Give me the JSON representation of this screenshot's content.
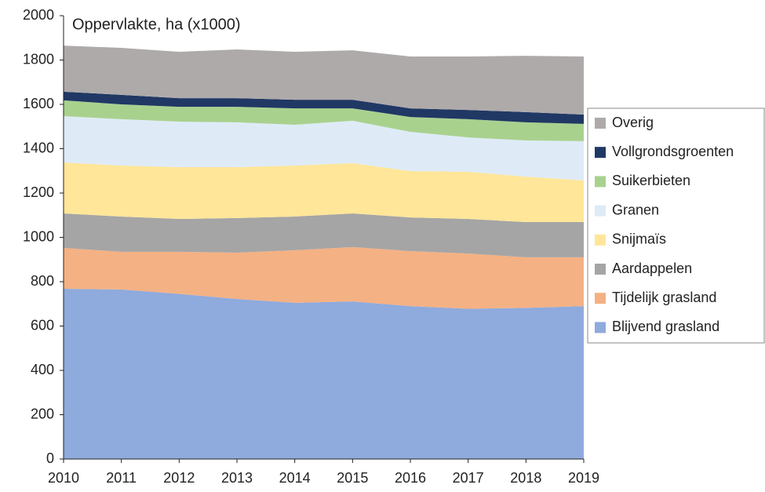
{
  "chart_data": {
    "type": "stacked_area",
    "title": "Oppervlakte, ha (x1000)",
    "categories": [
      "2010",
      "2011",
      "2012",
      "2013",
      "2014",
      "2015",
      "2016",
      "2017",
      "2018",
      "2019"
    ],
    "ylim": [
      0,
      2000
    ],
    "yticks": [
      0,
      200,
      400,
      600,
      800,
      1000,
      1200,
      1400,
      1600,
      1800,
      2000
    ],
    "series": [
      {
        "name": "Blijvend grasland",
        "color": "#8faadc",
        "values": [
          768,
          765,
          745,
          722,
          705,
          711,
          690,
          678,
          682,
          690
        ]
      },
      {
        "name": "Tijdelijk grasland",
        "color": "#f4b183",
        "values": [
          184,
          170,
          190,
          209,
          237,
          245,
          248,
          249,
          228,
          220
        ]
      },
      {
        "name": "Aardappelen",
        "color": "#a5a5a5",
        "values": [
          156,
          159,
          148,
          156,
          152,
          152,
          152,
          156,
          159,
          159
        ]
      },
      {
        "name": "Snijmaïs",
        "color": "#ffe699",
        "values": [
          230,
          230,
          234,
          230,
          230,
          227,
          209,
          213,
          205,
          188
        ]
      },
      {
        "name": "Granen",
        "color": "#deebf7",
        "values": [
          209,
          209,
          205,
          202,
          184,
          191,
          177,
          155,
          163,
          177
        ]
      },
      {
        "name": "Suikerbieten",
        "color": "#a9d18e",
        "values": [
          71,
          67,
          67,
          70,
          74,
          56,
          67,
          82,
          82,
          78
        ]
      },
      {
        "name": "Vollgrondsgroenten",
        "color": "#203864",
        "values": [
          39,
          43,
          39,
          39,
          39,
          39,
          39,
          42,
          46,
          42
        ]
      },
      {
        "name": "Overig",
        "color": "#aeaaaa",
        "values": [
          208,
          212,
          209,
          220,
          216,
          223,
          234,
          241,
          254,
          262
        ]
      }
    ]
  }
}
